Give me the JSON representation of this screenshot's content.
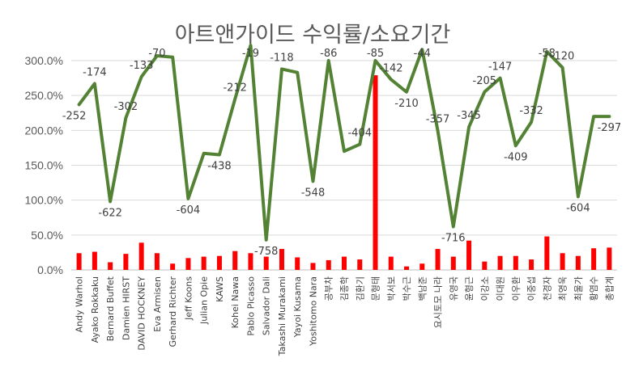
{
  "chart_data": {
    "type": "bar+line",
    "title": "아트앤가이드 수익률/소요기간",
    "ylim": [
      0,
      350
    ],
    "y_ticks": [
      "0.0%",
      "50.0%",
      "100.0%",
      "150.0%",
      "200.0%",
      "250.0%",
      "300.0%"
    ],
    "grid": true,
    "legend": "none",
    "colors": {
      "bar": "#ff0000",
      "line": "#548235",
      "grid": "#d9d9d9",
      "text": "#595959"
    },
    "categories": [
      "Andy Warhol",
      "Ayako Rokkaku",
      "Bernard Buffet",
      "Damien HIRST",
      "DAVID HOCKNEY",
      "Eva Armisen",
      "Gerhard Richter",
      "Jeff Koons",
      "Julian Opie",
      "KAWS",
      "Kohei Nawa",
      "Pablo Picasso",
      "Salvador Dali",
      "Takashi Murakami",
      "Yayoi Kusama",
      "Yoshitomo Nara",
      "공부차",
      "김종학",
      "김환기",
      "문형태",
      "박서보",
      "박수근",
      "백남준",
      "요시토모 나라",
      "유영국",
      "윤형근",
      "이강소",
      "이대원",
      "이우환",
      "이중섭",
      "천경자",
      "최영욱",
      "최울가",
      "황염수",
      "총합계"
    ],
    "series": [
      {
        "type": "bar",
        "values": [
          24,
          26,
          11,
          23,
          39,
          24,
          9,
          17,
          19,
          20,
          27,
          24,
          19,
          30,
          18,
          10,
          14,
          19,
          15,
          279,
          19,
          5,
          9,
          30,
          19,
          42,
          12,
          20,
          20,
          15,
          48,
          24,
          20,
          31,
          32
        ]
      },
      {
        "type": "line",
        "values": [
          237,
          267,
          98,
          218,
          277,
          307,
          305,
          102,
          167,
          165,
          245,
          322,
          43,
          288,
          283,
          127,
          300,
          170,
          180,
          300,
          273,
          255,
          316,
          200,
          62,
          205,
          255,
          275,
          178,
          212,
          313,
          290,
          105,
          220,
          220
        ]
      }
    ],
    "data_labels": [
      "-252",
      "-174",
      "-622",
      "-302",
      "-133",
      "-70",
      "",
      "-604",
      "",
      "-438",
      "-212",
      "-19",
      "-758",
      "-118",
      "",
      "-548",
      "-86",
      "",
      "-404",
      "-85",
      "-142",
      "-210",
      "-44",
      "-357",
      "-716",
      "-345",
      "-205",
      "-147",
      "-409",
      "-332",
      "-58",
      "-120",
      "-604",
      "",
      "-297"
    ]
  }
}
